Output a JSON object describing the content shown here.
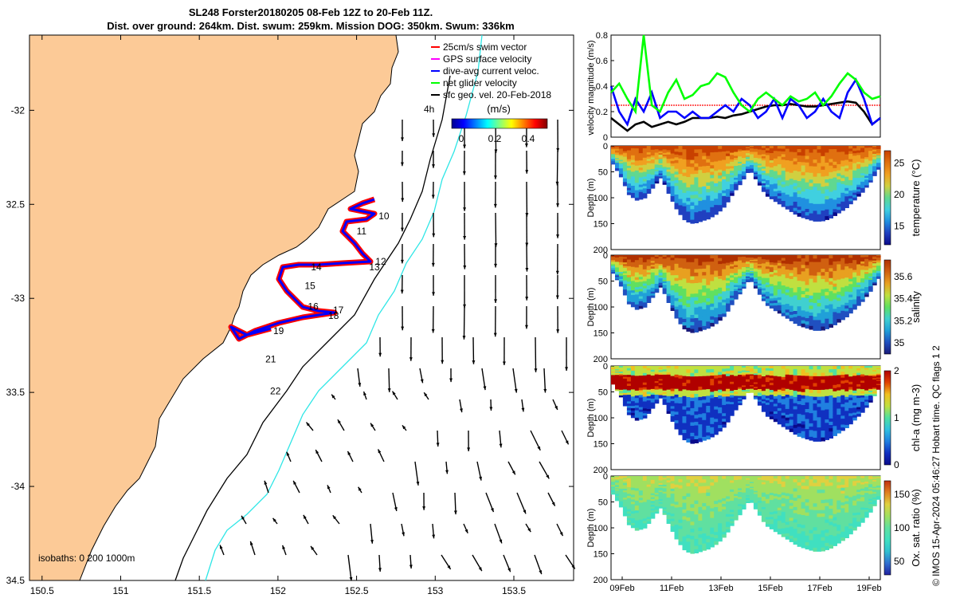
{
  "title": {
    "line1": "SL248 Forster20180205 08-Feb 12Z to 20-Feb 11Z.",
    "line2": "Dist. over ground: 264km. Dist. swum: 259km. Mission DOG: 350km. Swum: 336km"
  },
  "credit": "© IMOS 15-Apr-2024 05:46:27 Hobart time. QC flags 1  2",
  "map": {
    "lon_ticks": [
      "150.5",
      "151",
      "151.5",
      "152",
      "152.5",
      "153",
      "153.5"
    ],
    "lat_ticks": [
      "-32",
      "32.5",
      "-33",
      "33.5",
      "-34",
      "34.5"
    ],
    "lon_values": [
      150.5,
      151,
      151.5,
      152,
      152.5,
      153,
      153.5
    ],
    "lat_values": [
      -32,
      -32.5,
      -33,
      -33.5,
      -34,
      -34.5
    ],
    "xlim": [
      150.42,
      153.88
    ],
    "ylim": [
      -34.5,
      -31.6
    ],
    "isobaths_label": "isobaths: 0   200  1000m",
    "legend": [
      {
        "label": "25cm/s swim vector",
        "color": "#ff0000"
      },
      {
        "label": "GPS surface velocity",
        "color": "#ff00ff"
      },
      {
        "label": "dive-avg current veloc.",
        "color": "#0000ff"
      },
      {
        "label": "net glider velocity",
        "color": "#00ff00"
      },
      {
        "label": "sfc geo. vel. 20-Feb-2018",
        "color": "#000000"
      }
    ],
    "colorbar": {
      "label": "(m/s)",
      "ticks": [
        "0",
        "0.2",
        "0.4"
      ],
      "marker": "4h"
    },
    "day_labels": [
      {
        "text": "10",
        "lon": 152.64,
        "lat": -32.58
      },
      {
        "text": "11",
        "lon": 152.5,
        "lat": -32.66
      },
      {
        "text": "12",
        "lon": 152.62,
        "lat": -32.82
      },
      {
        "text": "13",
        "lon": 152.58,
        "lat": -32.85
      },
      {
        "text": "14",
        "lon": 152.21,
        "lat": -32.85
      },
      {
        "text": "15",
        "lon": 152.17,
        "lat": -32.95
      },
      {
        "text": "16",
        "lon": 152.19,
        "lat": -33.06
      },
      {
        "text": "17",
        "lon": 152.35,
        "lat": -33.08
      },
      {
        "text": "18",
        "lon": 152.32,
        "lat": -33.11
      },
      {
        "text": "19",
        "lon": 151.97,
        "lat": -33.19
      },
      {
        "text": "21",
        "lon": 151.92,
        "lat": -33.34
      },
      {
        "text": "22",
        "lon": 151.95,
        "lat": -33.51
      }
    ],
    "colors": {
      "land": "#fcca97",
      "coast": "#000000",
      "iso200": "#000000",
      "iso1000": "#2ee6e6",
      "track_red": "#ff0000",
      "track_blue": "#0000ff"
    }
  },
  "chart_data": [
    {
      "type": "line",
      "ylabel": "velocity magnitude (m/s)",
      "ylim": [
        0,
        0.8
      ],
      "yticks": [
        "0",
        "0.2",
        "0.4",
        "0.6",
        "0.8"
      ],
      "series": [
        {
          "name": "net glider velocity",
          "color": "#00ff00",
          "values": [
            0.35,
            0.42,
            0.3,
            0.2,
            0.8,
            0.25,
            0.2,
            0.35,
            0.45,
            0.3,
            0.33,
            0.4,
            0.42,
            0.5,
            0.47,
            0.35,
            0.25,
            0.2,
            0.3,
            0.35,
            0.3,
            0.25,
            0.32,
            0.28,
            0.3,
            0.35,
            0.25,
            0.32,
            0.42,
            0.5,
            0.45,
            0.35,
            0.3,
            0.32
          ]
        },
        {
          "name": "dive-avg current veloc.",
          "color": "#0000ff",
          "values": [
            0.4,
            0.2,
            0.1,
            0.3,
            0.2,
            0.35,
            0.15,
            0.2,
            0.2,
            0.15,
            0.2,
            0.15,
            0.15,
            0.2,
            0.25,
            0.2,
            0.3,
            0.25,
            0.15,
            0.2,
            0.3,
            0.15,
            0.3,
            0.25,
            0.15,
            0.2,
            0.3,
            0.2,
            0.15,
            0.35,
            0.45,
            0.3,
            0.1,
            0.15
          ]
        },
        {
          "name": "sfc geo. vel.",
          "color": "#000000",
          "values": [
            0.15,
            0.1,
            0.05,
            0.1,
            0.12,
            0.08,
            0.1,
            0.12,
            0.1,
            0.12,
            0.15,
            0.15,
            0.15,
            0.16,
            0.15,
            0.17,
            0.18,
            0.2,
            0.22,
            0.24,
            0.25,
            0.25,
            0.26,
            0.25,
            0.24,
            0.24,
            0.25,
            0.26,
            0.27,
            0.28,
            0.27,
            0.2,
            0.1,
            0.15
          ]
        },
        {
          "name": "25cm/s swim vector",
          "color": "#ff0000",
          "values": [
            0.25,
            0.25,
            0.25,
            0.25,
            0.25,
            0.25,
            0.25,
            0.25,
            0.25,
            0.25,
            0.25,
            0.25,
            0.25,
            0.25,
            0.25,
            0.25,
            0.25,
            0.25,
            0.25,
            0.25,
            0.25,
            0.25,
            0.25,
            0.25,
            0.25,
            0.25,
            0.25,
            0.25,
            0.25,
            0.25,
            0.25,
            0.25,
            0.25,
            0.25
          ]
        }
      ]
    },
    {
      "type": "heatmap",
      "variable": "temperature",
      "ylabel": "Depth (m)",
      "clabel": "temperature (°C)",
      "cticks": [
        "15",
        "20",
        "25"
      ],
      "crange": [
        12,
        27
      ],
      "yticks": [
        "0",
        "50",
        "100",
        "150",
        "200"
      ],
      "ylim": [
        0,
        200
      ]
    },
    {
      "type": "heatmap",
      "variable": "salinity",
      "ylabel": "Depth (m)",
      "clabel": "salinity",
      "cticks": [
        "35",
        "35.2",
        "35.4",
        "35.6"
      ],
      "crange": [
        34.9,
        35.75
      ],
      "yticks": [
        "0",
        "50",
        "100",
        "150",
        "200"
      ],
      "ylim": [
        0,
        200
      ]
    },
    {
      "type": "heatmap",
      "variable": "chl-a",
      "ylabel": "Depth (m)",
      "clabel": "chl-a (mg m-3)",
      "cticks": [
        "0",
        "1",
        "2"
      ],
      "crange": [
        0,
        2
      ],
      "yticks": [
        "0",
        "50",
        "100",
        "150",
        "200"
      ],
      "ylim": [
        0,
        200
      ]
    },
    {
      "type": "heatmap",
      "variable": "oxygen saturation",
      "ylabel": "Depth (m)",
      "clabel": "Ox. sat. ratio (%)",
      "cticks": [
        "50",
        "100",
        "150"
      ],
      "crange": [
        30,
        170
      ],
      "yticks": [
        "0",
        "50",
        "100",
        "150",
        "200"
      ],
      "ylim": [
        0,
        200
      ],
      "xticks": [
        "09Feb",
        "11Feb",
        "13Feb",
        "15Feb",
        "17Feb",
        "19Feb"
      ]
    }
  ],
  "bathymetry_profile": [
    35,
    60,
    95,
    105,
    100,
    80,
    60,
    95,
    125,
    145,
    150,
    145,
    140,
    130,
    115,
    90,
    70,
    45,
    70,
    95,
    105,
    115,
    125,
    135,
    140,
    145,
    145,
    140,
    130,
    120,
    105,
    90,
    70,
    45
  ]
}
